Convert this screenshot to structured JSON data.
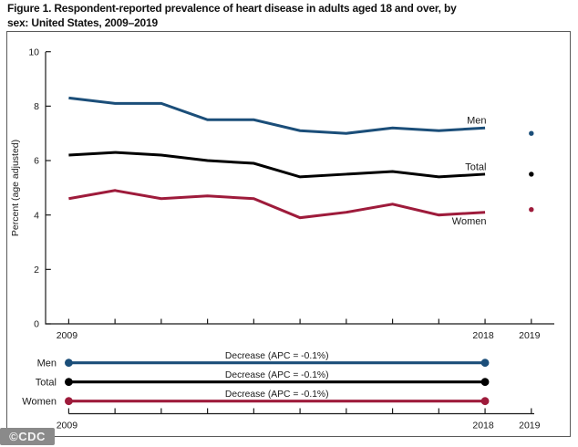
{
  "title": {
    "line1": "Figure 1. Respondent-reported prevalence of heart disease in adults aged 18 and over, by",
    "line2": "sex: United States, 2009–2019"
  },
  "watermark": {
    "text": "©CDC"
  },
  "colors": {
    "men": "#1b4e79",
    "total": "#000000",
    "women": "#9e1b3b",
    "axis": "#1a1a1a",
    "frame": "#5a5a5a",
    "watermark_bg": "#8a8a8a"
  },
  "chart_data": {
    "type": "line",
    "title": "Figure 1. Respondent-reported prevalence of heart disease in adults aged 18 and over, by sex: United States, 2009–2019",
    "xlabel": "",
    "ylabel": "Percent (age adjusted)",
    "ylim": [
      0,
      10
    ],
    "yticks": [
      0,
      2,
      4,
      6,
      8,
      10
    ],
    "x": [
      2009,
      2010,
      2011,
      2012,
      2013,
      2014,
      2015,
      2016,
      2017,
      2018
    ],
    "xticks": [
      2009,
      2010,
      2011,
      2012,
      2013,
      2014,
      2015,
      2016,
      2017,
      2018,
      2019
    ],
    "xtick_labels_shown": [
      "2009",
      "2018",
      "2019"
    ],
    "grid": false,
    "legend": "inline-labels",
    "series": [
      {
        "name": "Men",
        "color_key": "men",
        "label_position": "above",
        "values": [
          8.3,
          8.1,
          8.1,
          7.5,
          7.5,
          7.1,
          7.0,
          7.2,
          7.1,
          7.2
        ],
        "point_2019": 7.0
      },
      {
        "name": "Total",
        "color_key": "total",
        "label_position": "above",
        "values": [
          6.2,
          6.3,
          6.2,
          6.0,
          5.9,
          5.4,
          5.5,
          5.6,
          5.4,
          5.5
        ],
        "point_2019": 5.5
      },
      {
        "name": "Women",
        "color_key": "women",
        "label_position": "below",
        "values": [
          4.6,
          4.9,
          4.6,
          4.7,
          4.6,
          3.9,
          4.1,
          4.4,
          4.0,
          4.1
        ],
        "point_2019": 4.2
      }
    ]
  },
  "trend_panel": {
    "span_years": [
      2009,
      2018
    ],
    "axis_ticks": [
      2009,
      2010,
      2011,
      2012,
      2013,
      2014,
      2015,
      2016,
      2017,
      2018,
      2019
    ],
    "axis_labels_shown": [
      "2009",
      "2018",
      "2019"
    ],
    "rows": [
      {
        "label": "Men",
        "color_key": "men",
        "annotation": "Decrease (APC = -0.1%)"
      },
      {
        "label": "Total",
        "color_key": "total",
        "annotation": "Decrease (APC = -0.1%)"
      },
      {
        "label": "Women",
        "color_key": "women",
        "annotation": "Decrease (APC = -0.1%)"
      }
    ]
  }
}
